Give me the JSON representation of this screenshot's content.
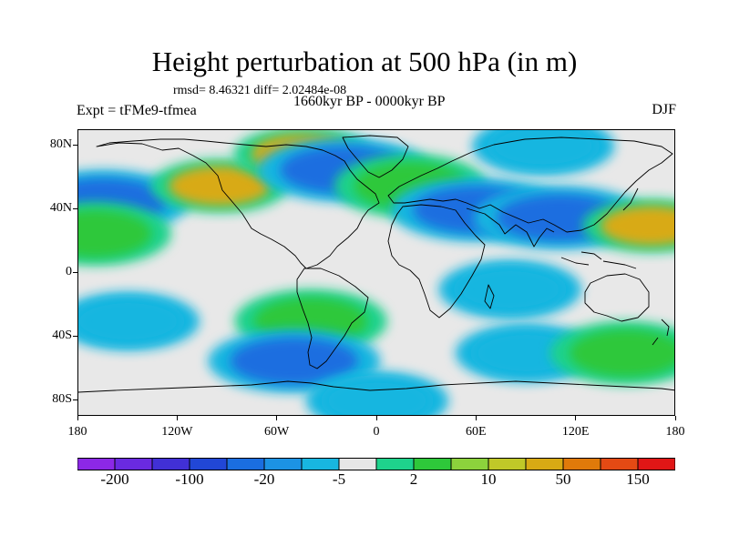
{
  "title": "Height perturbation at 500 hPa (in m)",
  "stats": "rmsd= 8.46321 diff= 2.02484e-08",
  "subtitle": "1660kyr BP - 0000kyr BP",
  "experiment": "Expt = tFMe9-tfmea",
  "season": "DJF",
  "map": {
    "projection": "cylindrical equidistant",
    "lon_range": [
      -180,
      180
    ],
    "lat_range": [
      -90,
      90
    ],
    "lat_ticks": [
      {
        "value": 80,
        "label": "80N"
      },
      {
        "value": 40,
        "label": "40N"
      },
      {
        "value": 0,
        "label": "0"
      },
      {
        "value": -40,
        "label": "40S"
      },
      {
        "value": -80,
        "label": "80S"
      }
    ],
    "lon_ticks": [
      {
        "value": -180,
        "label": "180"
      },
      {
        "value": -120,
        "label": "120W"
      },
      {
        "value": -60,
        "label": "60W"
      },
      {
        "value": 0,
        "label": "0"
      },
      {
        "value": 60,
        "label": "60E"
      },
      {
        "value": 120,
        "label": "120E"
      },
      {
        "value": 180,
        "label": "180"
      }
    ],
    "background_color": "#e8e8e8",
    "coastline_color": "#000000",
    "anomalies": [
      {
        "region": "North Pacific west",
        "lon": -165,
        "lat": 45,
        "level": -20
      },
      {
        "region": "Central Pacific subtropics",
        "lon": -170,
        "lat": 25,
        "level": 10
      },
      {
        "region": "North America / North Atlantic west",
        "lon": -95,
        "lat": 55,
        "level": 50
      },
      {
        "region": "Greenland / Canadian Arctic",
        "lon": -45,
        "lat": 75,
        "level": 50
      },
      {
        "region": "Norwegian Sea",
        "lon": -20,
        "lat": 65,
        "level": -20
      },
      {
        "region": "Europe / Mediterranean",
        "lon": 20,
        "lat": 55,
        "level": 10
      },
      {
        "region": "Central Asia",
        "lon": 60,
        "lat": 40,
        "level": -20
      },
      {
        "region": "Northwest Pacific",
        "lon": 110,
        "lat": 35,
        "level": -20
      },
      {
        "region": "North Pacific east",
        "lon": 165,
        "lat": 30,
        "level": 50
      },
      {
        "region": "Arctic east",
        "lon": 100,
        "lat": 80,
        "level": -5
      },
      {
        "region": "Tropical Indian Ocean",
        "lon": 80,
        "lat": -10,
        "level": -5
      },
      {
        "region": "South Pacific",
        "lon": -150,
        "lat": -30,
        "level": -5
      },
      {
        "region": "South Atlantic subtropics",
        "lon": -40,
        "lat": -30,
        "level": 10
      },
      {
        "region": "Southern Ocean Atlantic sector",
        "lon": -50,
        "lat": -55,
        "level": -20
      },
      {
        "region": "Southern Indian Ocean",
        "lon": 90,
        "lat": -50,
        "level": -5
      },
      {
        "region": "Southern Ocean Pacific sector",
        "lon": 150,
        "lat": -50,
        "level": 10
      },
      {
        "region": "Antarctica",
        "lon": 0,
        "lat": -80,
        "level": -5
      }
    ]
  },
  "colorbar": {
    "colors": [
      "#8c28e6",
      "#6a2ae0",
      "#4130d6",
      "#2147d6",
      "#1a6ee0",
      "#1c93e4",
      "#18b6e0",
      "#e6e6e6",
      "#1ed28c",
      "#2ec83a",
      "#8cd23c",
      "#c0c828",
      "#d8aa14",
      "#e07a0a",
      "#e44a14",
      "#e01616"
    ],
    "labels": [
      "-200",
      "-100",
      "-20",
      "-5",
      "2",
      "10",
      "50",
      "150"
    ]
  }
}
